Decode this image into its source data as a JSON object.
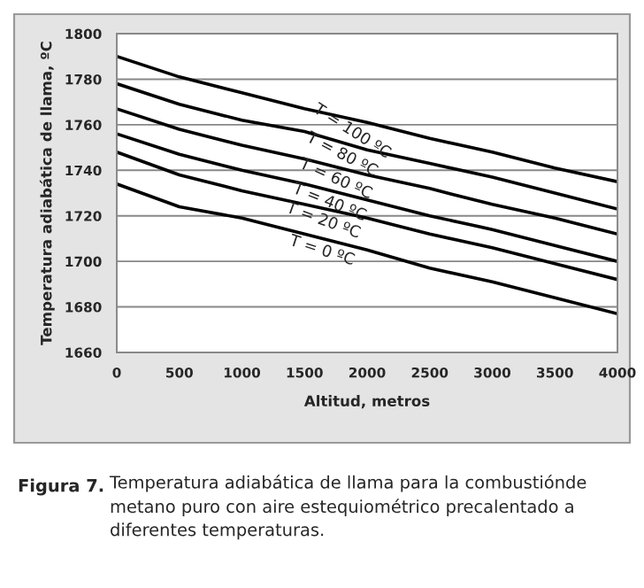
{
  "chart_data": {
    "type": "line",
    "xlabel": "Altitud, metros",
    "ylabel": "Temperatura adiabática de llama, ºC",
    "x": [
      0,
      500,
      1000,
      1500,
      2000,
      2500,
      3000,
      3500,
      4000
    ],
    "series": [
      {
        "name": "T = 100 ºC",
        "color": "#000000",
        "values": [
          1790,
          1781,
          1774,
          1767,
          1761,
          1754,
          1748,
          1741,
          1735
        ]
      },
      {
        "name": "T = 80 ºC",
        "color": "#000000",
        "values": [
          1778,
          1769,
          1762,
          1757,
          1749,
          1743,
          1737,
          1730,
          1723
        ]
      },
      {
        "name": "T = 60 ºC",
        "color": "#000000",
        "values": [
          1767,
          1758,
          1751,
          1745,
          1738,
          1732,
          1725,
          1719,
          1712
        ]
      },
      {
        "name": "T = 40 ºC",
        "color": "#000000",
        "values": [
          1756,
          1747,
          1740,
          1734,
          1727,
          1720,
          1714,
          1707,
          1700
        ]
      },
      {
        "name": "T = 20 ºC",
        "color": "#000000",
        "values": [
          1748,
          1738,
          1731,
          1725,
          1719,
          1712,
          1706,
          1699,
          1692
        ]
      },
      {
        "name": "T = 0 ºC",
        "color": "#000000",
        "values": [
          1734,
          1724,
          1719,
          1712,
          1705,
          1697,
          1691,
          1684,
          1677
        ]
      }
    ],
    "xlim": [
      0,
      4000
    ],
    "xticks": [
      0,
      500,
      1000,
      1500,
      2000,
      2500,
      3000,
      3500,
      4000
    ],
    "ylim": [
      1660,
      1800
    ],
    "yticks": [
      1660,
      1680,
      1700,
      1720,
      1740,
      1760,
      1780,
      1800
    ],
    "grid": "y",
    "legend": false,
    "marker": "none",
    "line_style": "solid",
    "annotations": [
      "Figura 7.",
      "Temperatura adiabática de llama para la combustiónde metano puro con aire estequiométrico precalentado a diferentes temperaturas."
    ]
  }
}
